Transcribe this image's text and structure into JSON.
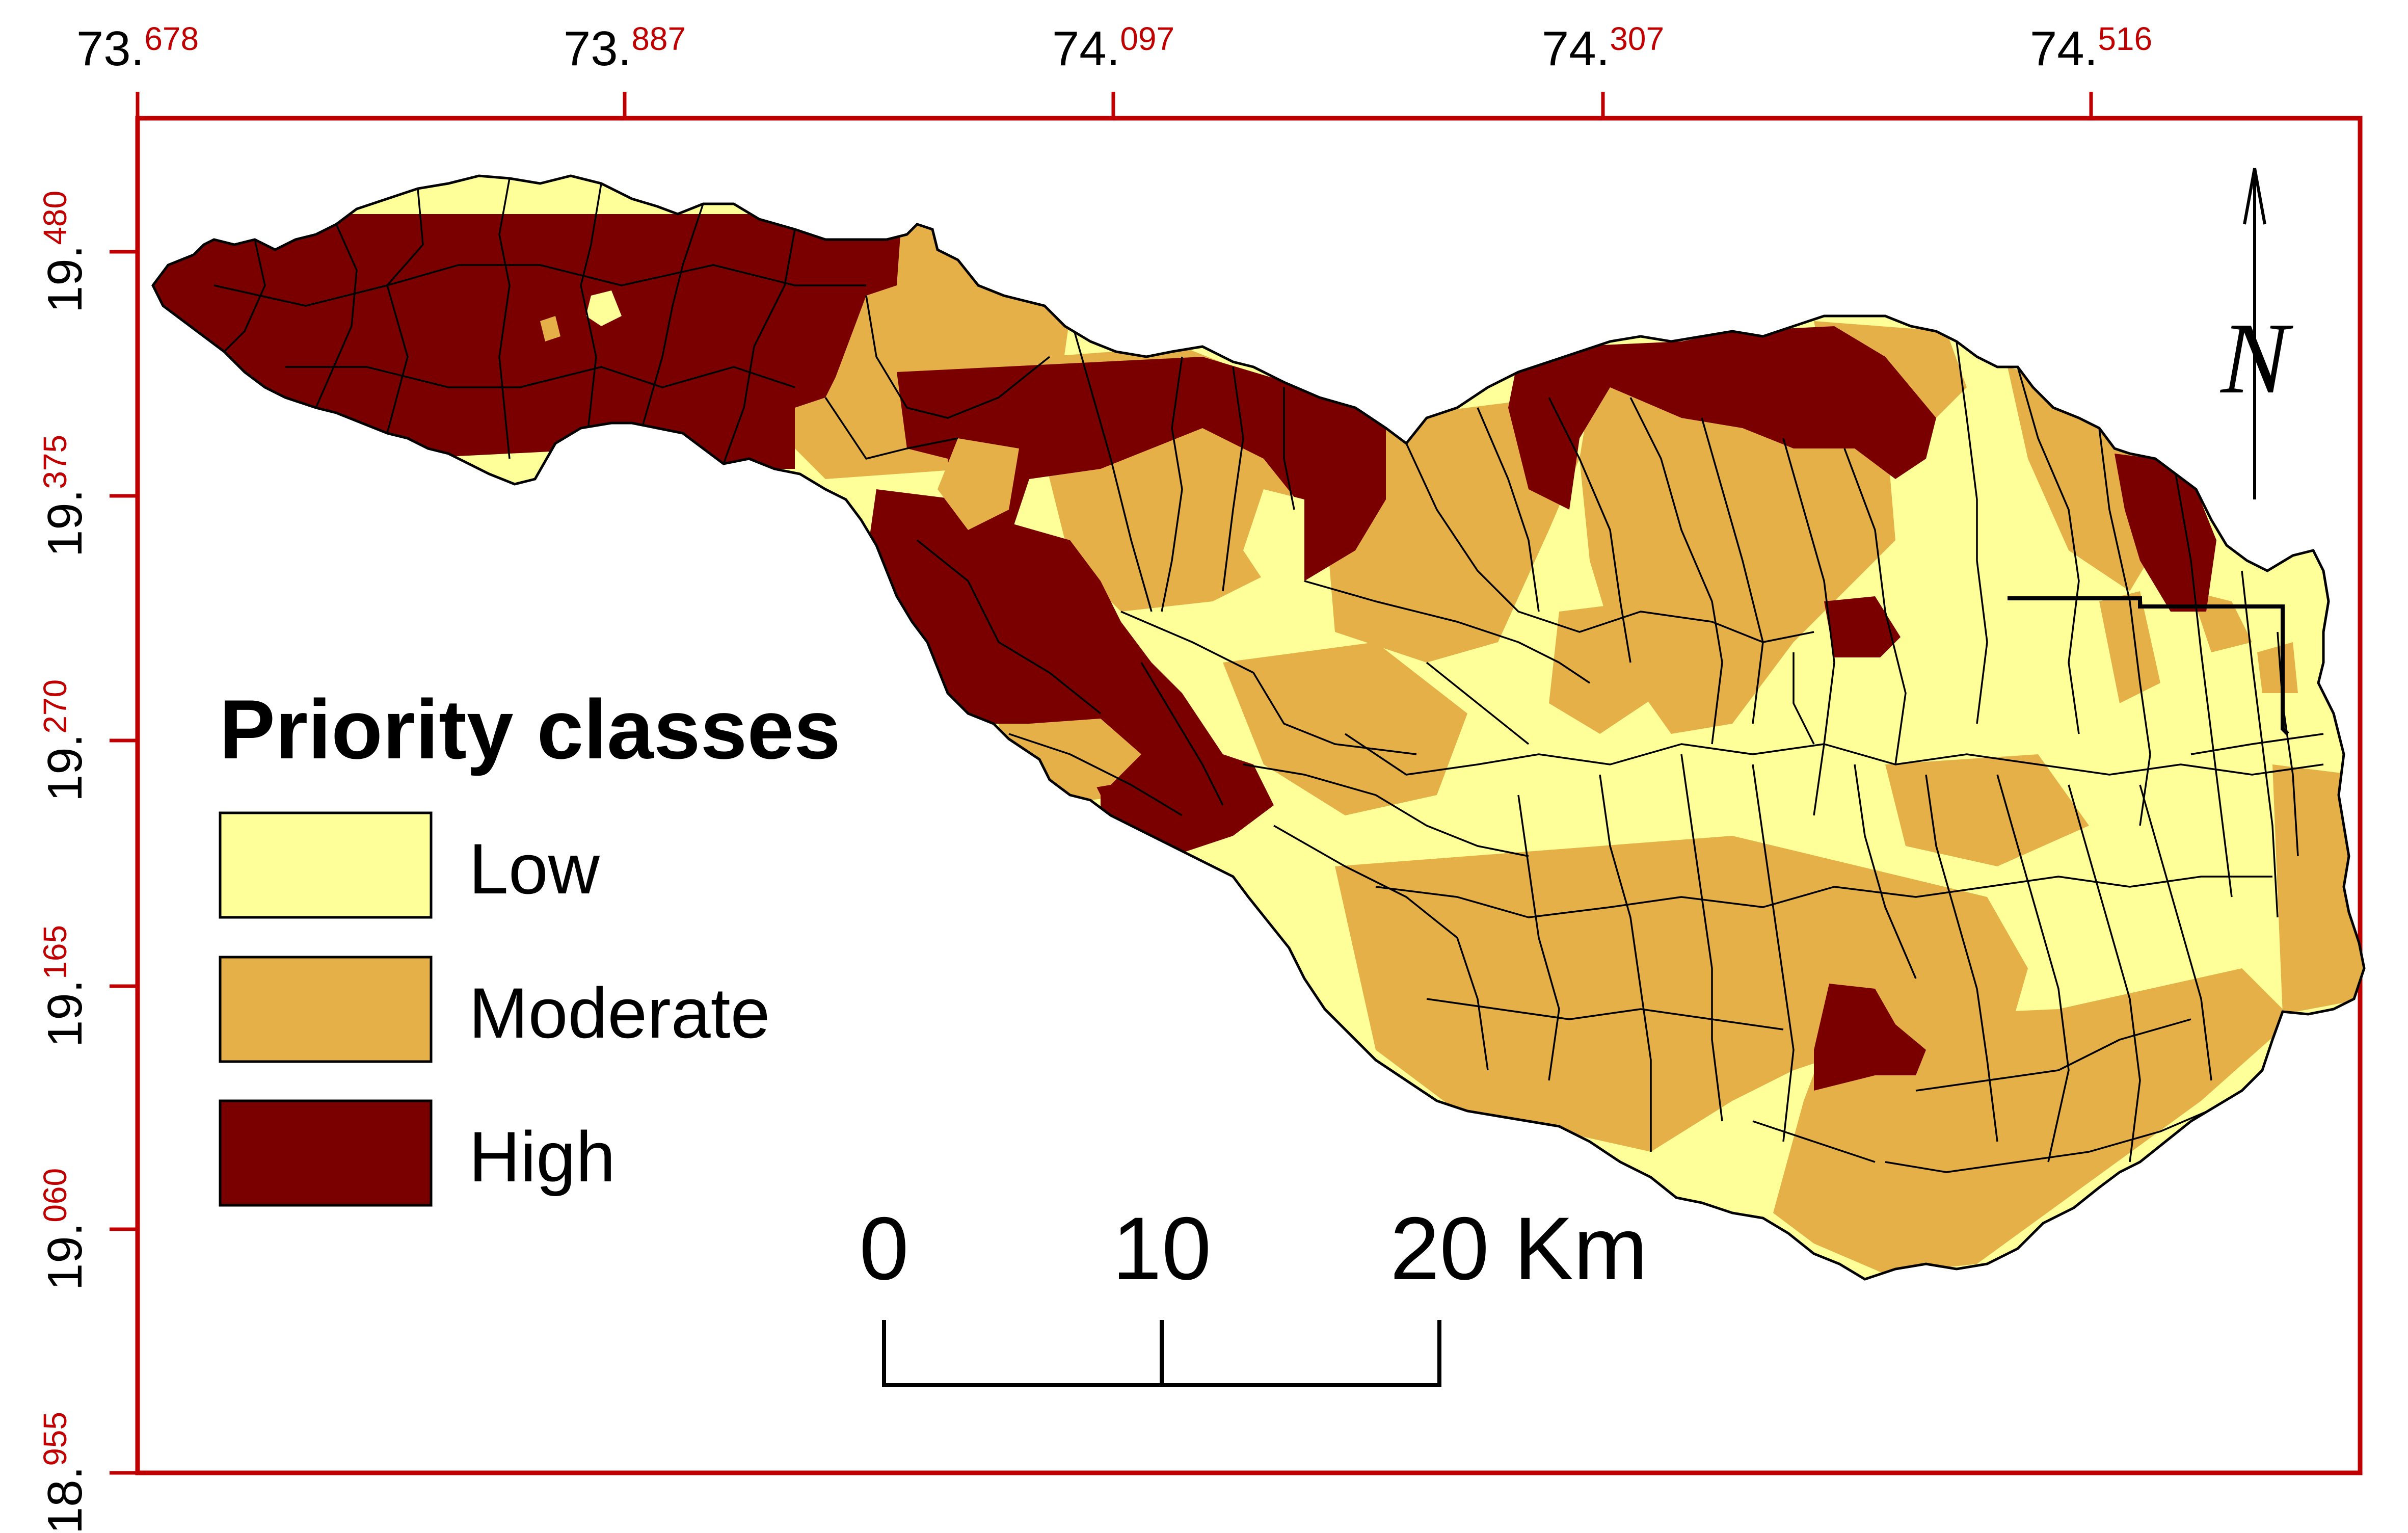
{
  "x_ticks": [
    {
      "int": "73.",
      "frac": "678"
    },
    {
      "int": "73.",
      "frac": "887"
    },
    {
      "int": "74.",
      "frac": "097"
    },
    {
      "int": "74.",
      "frac": "307"
    },
    {
      "int": "74.",
      "frac": "516"
    }
  ],
  "y_ticks": [
    {
      "int": "19.",
      "frac": "480"
    },
    {
      "int": "19.",
      "frac": "375"
    },
    {
      "int": "19.",
      "frac": "270"
    },
    {
      "int": "19.",
      "frac": "165"
    },
    {
      "int": "19.",
      "frac": "060"
    },
    {
      "int": "18.",
      "frac": "955"
    }
  ],
  "legend": {
    "title": "Priority classes",
    "items": [
      {
        "label": "Low",
        "color": "#ffff99"
      },
      {
        "label": "Moderate",
        "color": "#e6b048"
      },
      {
        "label": "High",
        "color": "#7a0000"
      }
    ]
  },
  "scale_bar": {
    "labels": [
      "0",
      "10",
      "20 Km"
    ]
  },
  "north_arrow": {
    "label": "N"
  },
  "colors": {
    "frame": "#c00000",
    "low": "#ffff99",
    "moderate": "#e6b048",
    "high": "#7a0000"
  }
}
